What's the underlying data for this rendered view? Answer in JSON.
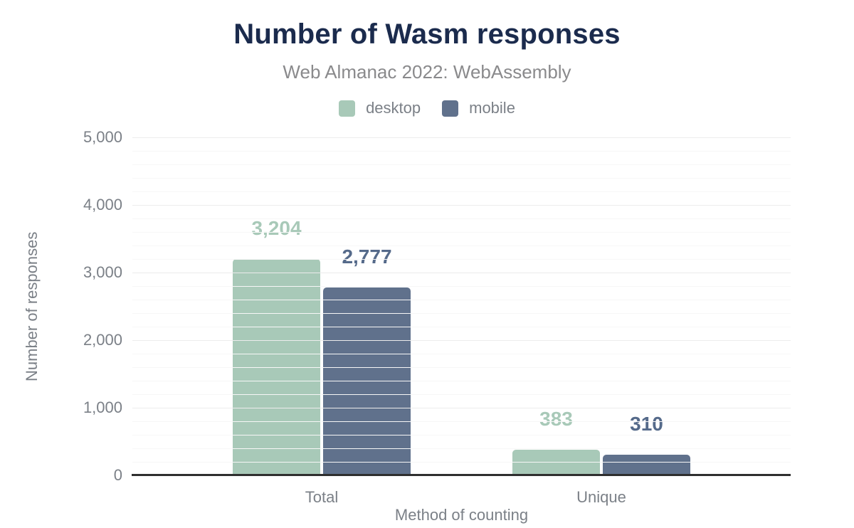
{
  "chart_data": {
    "type": "bar",
    "title": "Number of Wasm responses",
    "subtitle": "Web Almanac 2022: WebAssembly",
    "xlabel": "Method of counting",
    "ylabel": "Number of responses",
    "categories": [
      "Total",
      "Unique"
    ],
    "series": [
      {
        "name": "desktop",
        "color": "#a8c9b8",
        "label_color": "#a8c9b8",
        "values": [
          3204,
          383
        ],
        "value_labels": [
          "3,204",
          "383"
        ]
      },
      {
        "name": "mobile",
        "color": "#60718c",
        "label_color": "#556a8a",
        "values": [
          2777,
          310
        ],
        "value_labels": [
          "2,777",
          "310"
        ]
      }
    ],
    "ylim": [
      0,
      5000
    ],
    "yticks": [
      {
        "v": 0,
        "label": "0"
      },
      {
        "v": 1000,
        "label": "1,000"
      },
      {
        "v": 2000,
        "label": "2,000"
      },
      {
        "v": 3000,
        "label": "3,000"
      },
      {
        "v": 4000,
        "label": "4,000"
      },
      {
        "v": 5000,
        "label": "5,000"
      }
    ],
    "major_tick_step": 1000,
    "minor_tick_step": 200,
    "grid": true,
    "legend_position": "top"
  },
  "colors": {
    "title": "#1b2b4d",
    "subtitle": "#8a8a8c",
    "axis_text": "#7b8087",
    "axis_line": "#2f2f2f",
    "grid_major": "#ececec",
    "grid_minor": "#f7f7f7",
    "background": "#ffffff"
  }
}
